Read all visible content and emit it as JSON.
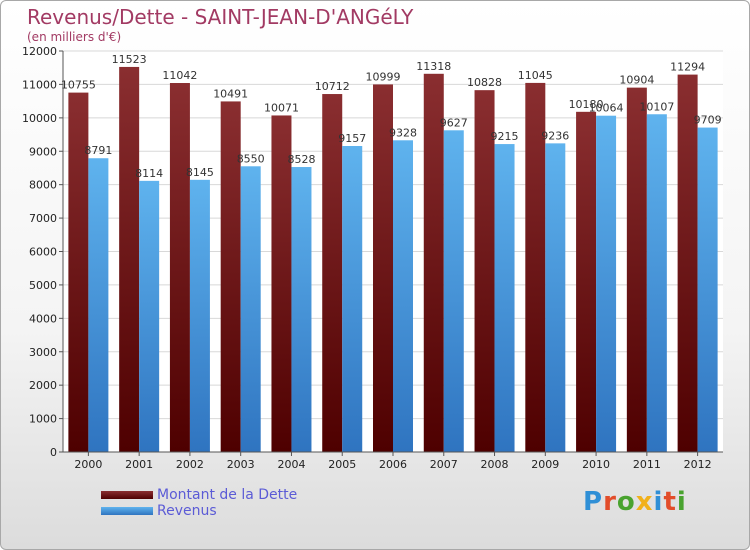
{
  "title": "Revenus/Dette - SAINT-JEAN-D'ANGéLY",
  "subtitle": "(en milliers d'€)",
  "logo": {
    "text": "Proxiti",
    "letter_colors": [
      "#2f8fd6",
      "#e24d2a",
      "#49a32f",
      "#f1b11b",
      "#2f8fd6",
      "#e24d2a",
      "#49a32f"
    ]
  },
  "colors": {
    "debt_top": "#8a2e30",
    "debt_bottom": "#4e0000",
    "revenue_top": "#5fb3ee",
    "revenue_bottom": "#2f74c0",
    "grid": "#d8d8d8"
  },
  "chart_data": {
    "type": "bar",
    "title": "Revenus/Dette - SAINT-JEAN-D'ANGéLY",
    "subtitle": "(en milliers d'€)",
    "categories": [
      "2000",
      "2001",
      "2002",
      "2003",
      "2004",
      "2005",
      "2006",
      "2007",
      "2008",
      "2009",
      "2010",
      "2011",
      "2012"
    ],
    "series": [
      {
        "name": "Montant de la Dette",
        "values": [
          10755,
          11523,
          11042,
          10491,
          10071,
          10712,
          10999,
          11318,
          10828,
          11045,
          10180,
          10904,
          11294
        ]
      },
      {
        "name": "Revenus",
        "values": [
          8791,
          8114,
          8145,
          8550,
          8528,
          9157,
          9328,
          9627,
          9215,
          9236,
          10064,
          10107,
          9709
        ]
      }
    ],
    "yticks": [
      "0",
      "1000",
      "2000",
      "3000",
      "4000",
      "5000",
      "6000",
      "7000",
      "8000",
      "9000",
      "10000",
      "11000",
      "12000"
    ],
    "ylim": [
      0,
      12000
    ],
    "grid": true,
    "legend_position": "bottom-left"
  }
}
